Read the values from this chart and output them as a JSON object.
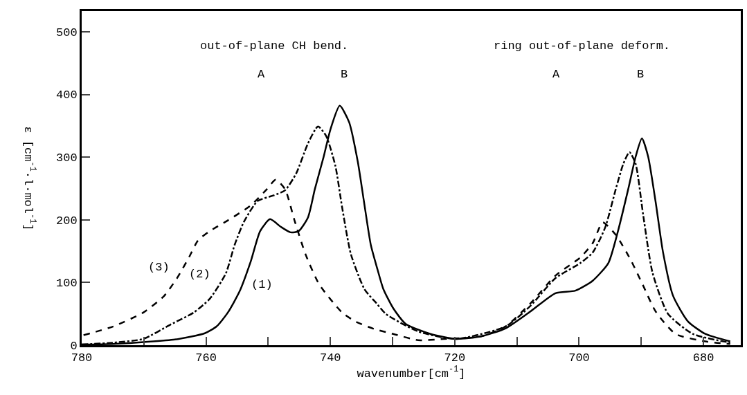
{
  "chart_data": {
    "type": "line",
    "xlabel": "wavenumber[cm$^{-1}$]",
    "ylabel": "ε [cm$^{-1}$·l·mol$^{-1}$]",
    "xlim": [
      780,
      674
    ],
    "ylim": [
      0,
      533
    ],
    "xticks": [
      780,
      {
        "value": 770,
        "label": null
      },
      760,
      {
        "value": 750,
        "label": null
      },
      740,
      {
        "value": 730,
        "label": null
      },
      720,
      {
        "value": 710,
        "label": null
      },
      700,
      {
        "value": 690,
        "label": null
      },
      680
    ],
    "yticks": [
      0,
      100,
      200,
      300,
      400,
      500
    ],
    "marker": "none",
    "series": [
      {
        "color": "#000000",
        "line_style": "solid",
        "x": [
          780,
          775,
          770,
          765,
          760.2,
          758.3,
          756.5,
          754.6,
          752.8,
          751.3,
          749.7,
          748,
          746.4,
          745.1,
          743.6,
          742.5,
          741.1,
          740,
          738.5,
          737,
          735.6,
          734.6,
          733.5,
          732.4,
          731.5,
          729.9,
          727.9,
          723.9,
          719.8,
          715.8,
          711.8,
          707.8,
          703.8,
          700.6,
          697.8,
          695.3,
          693.8,
          692.1,
          690.9,
          689.9,
          688.9,
          687.7,
          686.5,
          684.9,
          682.5,
          679.7,
          675.7
        ],
        "values": [
          1,
          2,
          5,
          9,
          19,
          30,
          52,
          86,
          134,
          182,
          201,
          189,
          180,
          182,
          204,
          249,
          300,
          344,
          382,
          356,
          293,
          229,
          160,
          120,
          90,
          59,
          34,
          18,
          10,
          14,
          27,
          54,
          83,
          87,
          103,
          131,
          180,
          249,
          301,
          330,
          301,
          229,
          148,
          79,
          38,
          18,
          6
        ]
      },
      {
        "color": "#000000",
        "line_style": "dashdot",
        "x": [
          780,
          775,
          770.1,
          765.7,
          762,
          759.4,
          756.8,
          755.4,
          753.9,
          751.7,
          749.1,
          747.3,
          745.5,
          743.6,
          742,
          740.7,
          739.2,
          738.1,
          736.7,
          734.5,
          732.6,
          731.1,
          725.9,
          719.8,
          711.8,
          707.8,
          703.8,
          699.8,
          697.8,
          695.8,
          694.1,
          692.9,
          691.9,
          690.9,
          689.7,
          688.2,
          685.7,
          681.7,
          675.7
        ],
        "values": [
          1,
          4,
          10,
          33,
          52,
          74,
          115,
          160,
          197,
          230,
          239,
          247,
          274,
          322,
          349,
          334,
          286,
          219,
          145,
          89,
          67,
          50,
          22,
          10,
          30,
          63,
          107,
          131,
          148,
          188,
          249,
          289,
          308,
          289,
          208,
          116,
          50,
          18,
          4
        ]
      },
      {
        "color": "#000000",
        "line_style": "dashed",
        "x": [
          779.7,
          774.9,
          770.1,
          766.8,
          764.6,
          762.7,
          761.3,
          759.4,
          756.5,
          752.8,
          750.2,
          748.8,
          747.3,
          745.8,
          744,
          741.8,
          738.1,
          736,
          733,
          729.9,
          725.9,
          721.8,
          715.8,
          711.8,
          707.8,
          703.8,
          699.8,
          697.8,
          696.2,
          694.1,
          691.7,
          689.7,
          687.7,
          684.5,
          679.7,
          675.7
        ],
        "values": [
          16,
          30,
          52,
          78,
          108,
          141,
          167,
          182,
          199,
          223,
          249,
          264,
          249,
          200,
          145,
          97,
          52,
          38,
          26,
          18,
          8,
          10,
          14,
          30,
          67,
          111,
          140,
          163,
          196,
          176,
          136,
          95,
          54,
          18,
          6,
          2
        ]
      }
    ],
    "annotations": [
      "out-of-plane CH bend.",
      "ring out-of-plane deform.",
      "A",
      "B",
      "A",
      "B",
      "(3)",
      "(2)",
      "(1)"
    ]
  }
}
